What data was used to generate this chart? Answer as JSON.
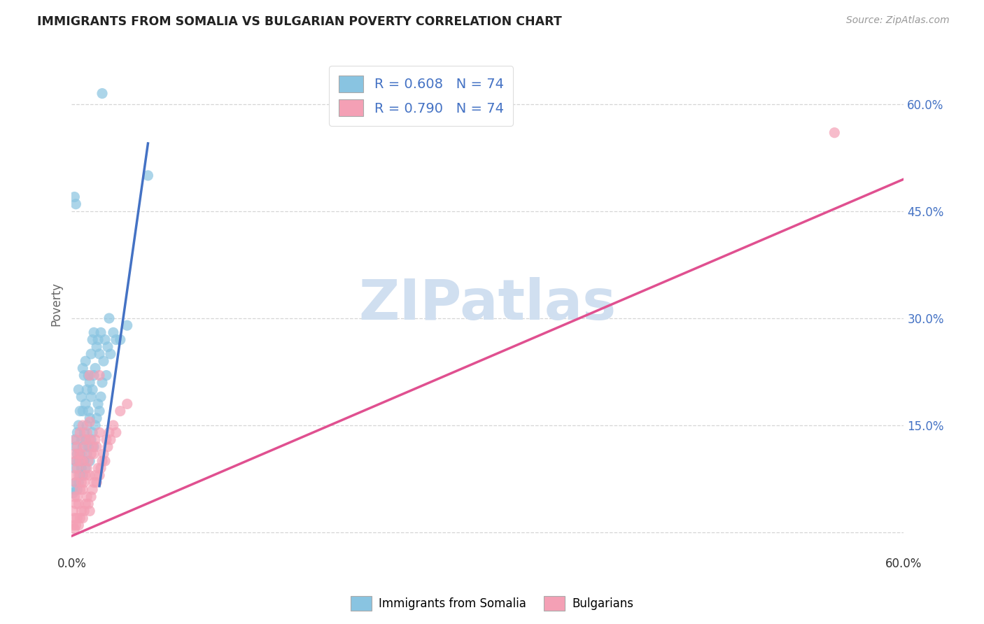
{
  "title": "IMMIGRANTS FROM SOMALIA VS BULGARIAN POVERTY CORRELATION CHART",
  "source": "Source: ZipAtlas.com",
  "ylabel": "Poverty",
  "xlim": [
    0,
    0.6
  ],
  "ylim": [
    -0.03,
    0.67
  ],
  "somalia_R": "0.608",
  "somalia_N": "74",
  "bulgarian_R": "0.790",
  "bulgarian_N": "74",
  "somalia_color": "#89c4e1",
  "bulgarian_color": "#f4a0b5",
  "somalia_line_color": "#4472c4",
  "bulgarian_line_color": "#e05090",
  "watermark_zip": "ZIP",
  "watermark_atlas": "atlas",
  "watermark_color": "#d0dff0",
  "background_color": "#ffffff",
  "grid_color": "#cccccc",
  "title_color": "#222222",
  "right_ytick_color": "#4472c4",
  "somalia_scatter": [
    [
      0.001,
      0.055
    ],
    [
      0.002,
      0.06
    ],
    [
      0.002,
      0.09
    ],
    [
      0.002,
      0.13
    ],
    [
      0.003,
      0.07
    ],
    [
      0.003,
      0.1
    ],
    [
      0.003,
      0.12
    ],
    [
      0.004,
      0.06
    ],
    [
      0.004,
      0.11
    ],
    [
      0.004,
      0.14
    ],
    [
      0.005,
      0.07
    ],
    [
      0.005,
      0.1
    ],
    [
      0.005,
      0.15
    ],
    [
      0.005,
      0.2
    ],
    [
      0.006,
      0.08
    ],
    [
      0.006,
      0.11
    ],
    [
      0.006,
      0.17
    ],
    [
      0.007,
      0.09
    ],
    [
      0.007,
      0.13
    ],
    [
      0.007,
      0.19
    ],
    [
      0.008,
      0.08
    ],
    [
      0.008,
      0.12
    ],
    [
      0.008,
      0.17
    ],
    [
      0.008,
      0.23
    ],
    [
      0.009,
      0.1
    ],
    [
      0.009,
      0.14
    ],
    [
      0.009,
      0.22
    ],
    [
      0.01,
      0.09
    ],
    [
      0.01,
      0.13
    ],
    [
      0.01,
      0.18
    ],
    [
      0.01,
      0.24
    ],
    [
      0.011,
      0.11
    ],
    [
      0.011,
      0.15
    ],
    [
      0.011,
      0.2
    ],
    [
      0.012,
      0.12
    ],
    [
      0.012,
      0.17
    ],
    [
      0.012,
      0.22
    ],
    [
      0.013,
      0.1
    ],
    [
      0.013,
      0.16
    ],
    [
      0.013,
      0.21
    ],
    [
      0.014,
      0.13
    ],
    [
      0.014,
      0.19
    ],
    [
      0.014,
      0.25
    ],
    [
      0.015,
      0.14
    ],
    [
      0.015,
      0.2
    ],
    [
      0.015,
      0.27
    ],
    [
      0.016,
      0.12
    ],
    [
      0.016,
      0.22
    ],
    [
      0.016,
      0.28
    ],
    [
      0.017,
      0.15
    ],
    [
      0.017,
      0.23
    ],
    [
      0.018,
      0.16
    ],
    [
      0.018,
      0.26
    ],
    [
      0.019,
      0.18
    ],
    [
      0.019,
      0.27
    ],
    [
      0.02,
      0.17
    ],
    [
      0.02,
      0.25
    ],
    [
      0.021,
      0.19
    ],
    [
      0.021,
      0.28
    ],
    [
      0.022,
      0.21
    ],
    [
      0.023,
      0.24
    ],
    [
      0.024,
      0.27
    ],
    [
      0.025,
      0.22
    ],
    [
      0.026,
      0.26
    ],
    [
      0.027,
      0.3
    ],
    [
      0.028,
      0.25
    ],
    [
      0.03,
      0.28
    ],
    [
      0.032,
      0.27
    ],
    [
      0.035,
      0.27
    ],
    [
      0.04,
      0.29
    ],
    [
      0.002,
      0.47
    ],
    [
      0.003,
      0.46
    ],
    [
      0.055,
      0.5
    ],
    [
      0.022,
      0.615
    ]
  ],
  "bulgarian_scatter": [
    [
      0.001,
      0.01
    ],
    [
      0.001,
      0.03
    ],
    [
      0.002,
      0.005
    ],
    [
      0.002,
      0.02
    ],
    [
      0.002,
      0.05
    ],
    [
      0.002,
      0.08
    ],
    [
      0.002,
      0.11
    ],
    [
      0.003,
      0.01
    ],
    [
      0.003,
      0.04
    ],
    [
      0.003,
      0.07
    ],
    [
      0.003,
      0.1
    ],
    [
      0.003,
      0.13
    ],
    [
      0.004,
      0.02
    ],
    [
      0.004,
      0.05
    ],
    [
      0.004,
      0.09
    ],
    [
      0.004,
      0.12
    ],
    [
      0.005,
      0.01
    ],
    [
      0.005,
      0.04
    ],
    [
      0.005,
      0.08
    ],
    [
      0.005,
      0.11
    ],
    [
      0.006,
      0.02
    ],
    [
      0.006,
      0.06
    ],
    [
      0.006,
      0.1
    ],
    [
      0.006,
      0.14
    ],
    [
      0.007,
      0.03
    ],
    [
      0.007,
      0.07
    ],
    [
      0.007,
      0.11
    ],
    [
      0.008,
      0.02
    ],
    [
      0.008,
      0.06
    ],
    [
      0.008,
      0.1
    ],
    [
      0.008,
      0.15
    ],
    [
      0.009,
      0.03
    ],
    [
      0.009,
      0.07
    ],
    [
      0.009,
      0.12
    ],
    [
      0.01,
      0.04
    ],
    [
      0.01,
      0.08
    ],
    [
      0.01,
      0.13
    ],
    [
      0.011,
      0.05
    ],
    [
      0.011,
      0.09
    ],
    [
      0.011,
      0.14
    ],
    [
      0.012,
      0.04
    ],
    [
      0.012,
      0.1
    ],
    [
      0.013,
      0.03
    ],
    [
      0.013,
      0.08
    ],
    [
      0.013,
      0.13
    ],
    [
      0.014,
      0.05
    ],
    [
      0.014,
      0.11
    ],
    [
      0.015,
      0.06
    ],
    [
      0.015,
      0.12
    ],
    [
      0.016,
      0.07
    ],
    [
      0.016,
      0.11
    ],
    [
      0.017,
      0.08
    ],
    [
      0.017,
      0.13
    ],
    [
      0.018,
      0.07
    ],
    [
      0.018,
      0.12
    ],
    [
      0.019,
      0.09
    ],
    [
      0.02,
      0.08
    ],
    [
      0.02,
      0.14
    ],
    [
      0.021,
      0.09
    ],
    [
      0.022,
      0.1
    ],
    [
      0.023,
      0.11
    ],
    [
      0.024,
      0.1
    ],
    [
      0.025,
      0.13
    ],
    [
      0.026,
      0.12
    ],
    [
      0.027,
      0.14
    ],
    [
      0.028,
      0.13
    ],
    [
      0.03,
      0.15
    ],
    [
      0.032,
      0.14
    ],
    [
      0.035,
      0.17
    ],
    [
      0.04,
      0.18
    ],
    [
      0.013,
      0.22
    ],
    [
      0.02,
      0.22
    ],
    [
      0.013,
      0.155
    ],
    [
      0.55,
      0.56
    ]
  ],
  "somalia_trend_x": [
    0.02,
    0.055
  ],
  "somalia_trend_y": [
    0.065,
    0.545
  ],
  "bulgarian_trend_x": [
    0.0,
    0.6
  ],
  "bulgarian_trend_y": [
    -0.005,
    0.495
  ]
}
